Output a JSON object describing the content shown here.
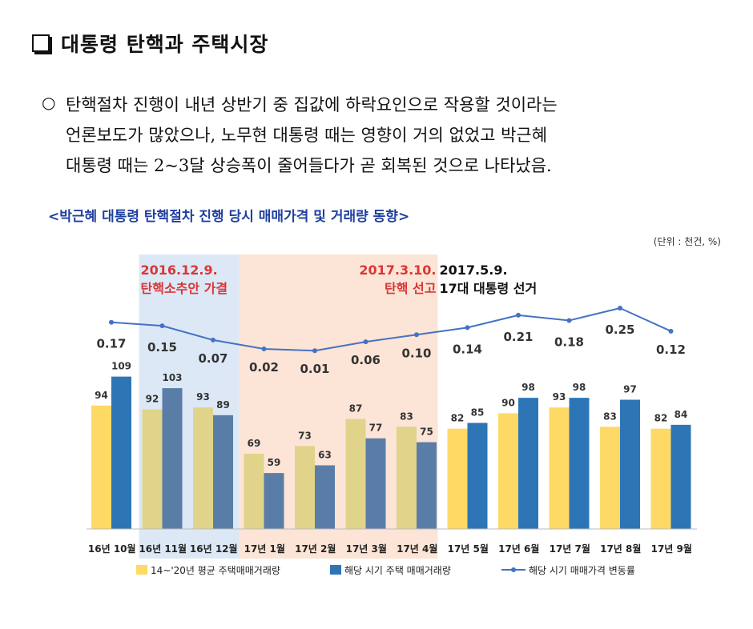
{
  "heading": {
    "title": "대통령 탄핵과 주택시장"
  },
  "bullet": {
    "mark": "○",
    "lines": [
      "탄핵절차 진행이 내년 상반기 중 집값에 하락요인으로 작용할 것이라는",
      "언론보도가 많았으나, 노무현 대통령 때는 영향이 거의 없었고 박근혜",
      "대통령 때는 2~3달 상승폭이 줄어들다가 곧 회복된 것으로 나타났음."
    ]
  },
  "chart_data": {
    "type": "bar",
    "title": "<박근혜 대통령 탄핵절차 진행 당시 매매가격 및 거래량 동향>",
    "unit_note": "(단위 : 천건, %)",
    "categories": [
      "16년 10월",
      "16년 11월",
      "16년 12월",
      "17년 1월",
      "17년 2월",
      "17년 3월",
      "17년 4월",
      "17년 5월",
      "17년 6월",
      "17년 7월",
      "17년 8월",
      "17년 9월"
    ],
    "series": [
      {
        "name": "14~'20년 평균 주택매매거래량",
        "type": "bar",
        "values": [
          94,
          92,
          93,
          69,
          73,
          87,
          83,
          82,
          90,
          93,
          83,
          82
        ]
      },
      {
        "name": "해당 시기 주택 매매거래량",
        "type": "bar",
        "values": [
          109,
          103,
          89,
          59,
          63,
          77,
          75,
          85,
          98,
          98,
          97,
          84
        ]
      },
      {
        "name": "해당 시기 매매가격 변동률",
        "type": "line",
        "values": [
          0.17,
          0.15,
          0.07,
          0.02,
          0.01,
          0.06,
          0.1,
          0.14,
          0.21,
          0.18,
          0.25,
          0.12
        ]
      }
    ],
    "bar_ylim": [
      30,
      130
    ],
    "line_ylim": [
      -0.4,
      0.5
    ],
    "annotations": [
      {
        "date": "2016.12.9.",
        "event": "탄핵소추안 가결",
        "start_index": 1,
        "end_index": 2
      },
      {
        "date": "2017.3.10.",
        "event": "탄핵 선고",
        "start_index": 3,
        "end_index": 6
      },
      {
        "date": "2017.5.9.",
        "event": "17대 대통령 선거",
        "start_index": 7,
        "end_index": 7
      }
    ],
    "colors": {
      "avg_bar": "#FFD966",
      "avg_bar_shaded": "#E0D48A",
      "cur_bar": "#2E75B6",
      "cur_bar_shaded": "#5A7DA8",
      "line": "#4472C4",
      "band_blue": "#DCE8F6",
      "band_orange": "#FCE4D6",
      "title": "#1F3FA0",
      "annotation_red": "#D93636"
    }
  }
}
